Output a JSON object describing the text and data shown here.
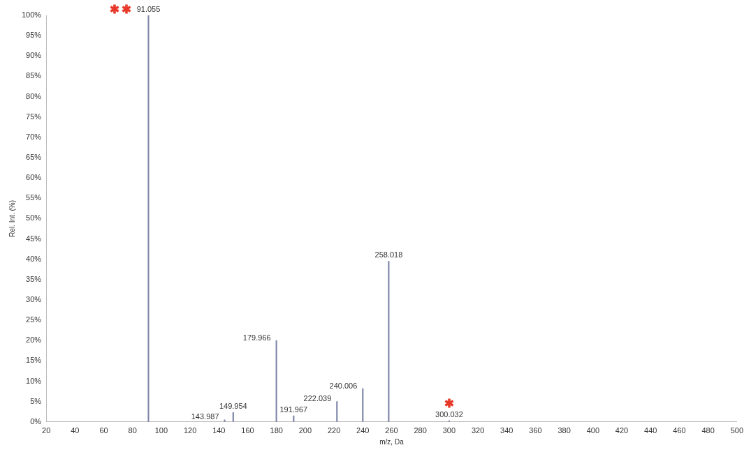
{
  "chart_data": {
    "type": "bar",
    "xlabel": "m/z, Da",
    "ylabel": "Rel. Int. (%)",
    "x": [
      91.055,
      143.987,
      149.954,
      179.966,
      191.967,
      222.039,
      240.006,
      258.018,
      300.032
    ],
    "values": [
      100,
      0.5,
      2.3,
      20,
      1.5,
      5,
      8.2,
      39.5,
      0.3
    ],
    "color": "#7f86a8",
    "xlim": [
      20,
      500
    ],
    "xticks": [
      20,
      40,
      60,
      80,
      100,
      120,
      140,
      160,
      180,
      200,
      220,
      240,
      260,
      280,
      300,
      320,
      340,
      360,
      380,
      400,
      420,
      440,
      460,
      480,
      500
    ],
    "ylim": [
      0,
      100
    ],
    "yticks": [
      {
        "value": 0,
        "label": "0%"
      },
      {
        "value": 5,
        "label": "5%"
      },
      {
        "value": 10,
        "label": "10%"
      },
      {
        "value": 15,
        "label": "15%"
      },
      {
        "value": 20,
        "label": "20%"
      },
      {
        "value": 25,
        "label": "25%"
      },
      {
        "value": 30,
        "label": "30%"
      },
      {
        "value": 35,
        "label": "35%"
      },
      {
        "value": 40,
        "label": "40%"
      },
      {
        "value": 45,
        "label": "45%"
      },
      {
        "value": 50,
        "label": "50%"
      },
      {
        "value": 55,
        "label": "55%"
      },
      {
        "value": 60,
        "label": "60%"
      },
      {
        "value": 65,
        "label": "65%"
      },
      {
        "value": 70,
        "label": "70%"
      },
      {
        "value": 75,
        "label": "75%"
      },
      {
        "value": 80,
        "label": "80%"
      },
      {
        "value": 85,
        "label": "85%"
      },
      {
        "value": 90,
        "label": "90%"
      },
      {
        "value": 95,
        "label": "95%"
      },
      {
        "value": 100,
        "label": "100%"
      }
    ],
    "grid": false,
    "legend": false,
    "annotations": [
      {
        "text": "91.055",
        "x": 91.055,
        "y": 100
      },
      {
        "text": "143.987",
        "x": 143.987,
        "y": 0.5
      },
      {
        "text": "149.954",
        "x": 149.954,
        "y": 2.3
      },
      {
        "text": "179.966",
        "x": 179.966,
        "y": 20
      },
      {
        "text": "191.967",
        "x": 191.967,
        "y": 1.5
      },
      {
        "text": "222.039",
        "x": 222.039,
        "y": 5
      },
      {
        "text": "240.006",
        "x": 240.006,
        "y": 8.2
      },
      {
        "text": "258.018",
        "x": 258.018,
        "y": 39.5
      },
      {
        "text": "300.032",
        "x": 300.032,
        "y": 0.3
      }
    ]
  }
}
